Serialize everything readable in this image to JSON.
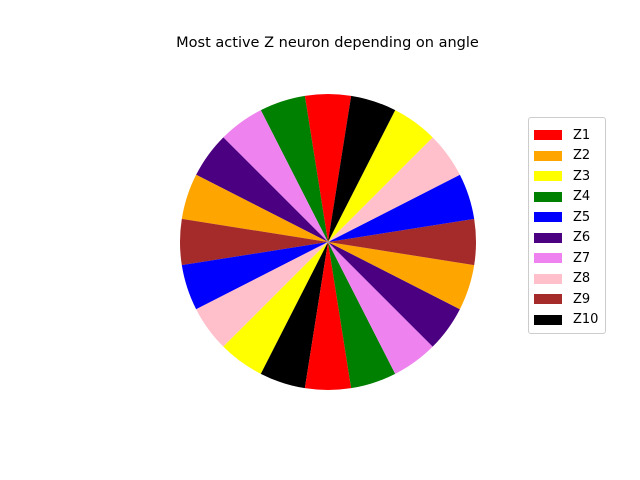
{
  "chart_data": {
    "type": "pie",
    "title": "Most active Z neuron depending on angle",
    "legend": {
      "placement": "right",
      "entries": [
        {
          "label": "Z1",
          "color": "#ff0000"
        },
        {
          "label": "Z2",
          "color": "#ffa500"
        },
        {
          "label": "Z3",
          "color": "#ffff00"
        },
        {
          "label": "Z4",
          "color": "#008000"
        },
        {
          "label": "Z5",
          "color": "#0000ff"
        },
        {
          "label": "Z6",
          "color": "#4b0082"
        },
        {
          "label": "Z7",
          "color": "#ee82ee"
        },
        {
          "label": "Z8",
          "color": "#ffc0cb"
        },
        {
          "label": "Z9",
          "color": "#a52a2a"
        },
        {
          "label": "Z10",
          "color": "#000000"
        }
      ]
    },
    "slices": [
      {
        "neuron": "Z1",
        "start_deg": 81,
        "end_deg": 99
      },
      {
        "neuron": "Z4",
        "start_deg": 99,
        "end_deg": 117
      },
      {
        "neuron": "Z7",
        "start_deg": 117,
        "end_deg": 135
      },
      {
        "neuron": "Z6",
        "start_deg": 135,
        "end_deg": 153
      },
      {
        "neuron": "Z2",
        "start_deg": 153,
        "end_deg": 171
      },
      {
        "neuron": "Z9",
        "start_deg": 171,
        "end_deg": 189
      },
      {
        "neuron": "Z5",
        "start_deg": 189,
        "end_deg": 207
      },
      {
        "neuron": "Z8",
        "start_deg": 207,
        "end_deg": 225
      },
      {
        "neuron": "Z3",
        "start_deg": 225,
        "end_deg": 243
      },
      {
        "neuron": "Z10",
        "start_deg": 243,
        "end_deg": 261
      },
      {
        "neuron": "Z1",
        "start_deg": 261,
        "end_deg": 279
      },
      {
        "neuron": "Z4",
        "start_deg": 279,
        "end_deg": 297
      },
      {
        "neuron": "Z7",
        "start_deg": 297,
        "end_deg": 315
      },
      {
        "neuron": "Z6",
        "start_deg": 315,
        "end_deg": 333
      },
      {
        "neuron": "Z2",
        "start_deg": 333,
        "end_deg": 351
      },
      {
        "neuron": "Z9",
        "start_deg": 351,
        "end_deg": 369
      },
      {
        "neuron": "Z5",
        "start_deg": 9,
        "end_deg": 27
      },
      {
        "neuron": "Z8",
        "start_deg": 27,
        "end_deg": 45
      },
      {
        "neuron": "Z3",
        "start_deg": 45,
        "end_deg": 63
      },
      {
        "neuron": "Z10",
        "start_deg": 63,
        "end_deg": 81
      }
    ]
  }
}
